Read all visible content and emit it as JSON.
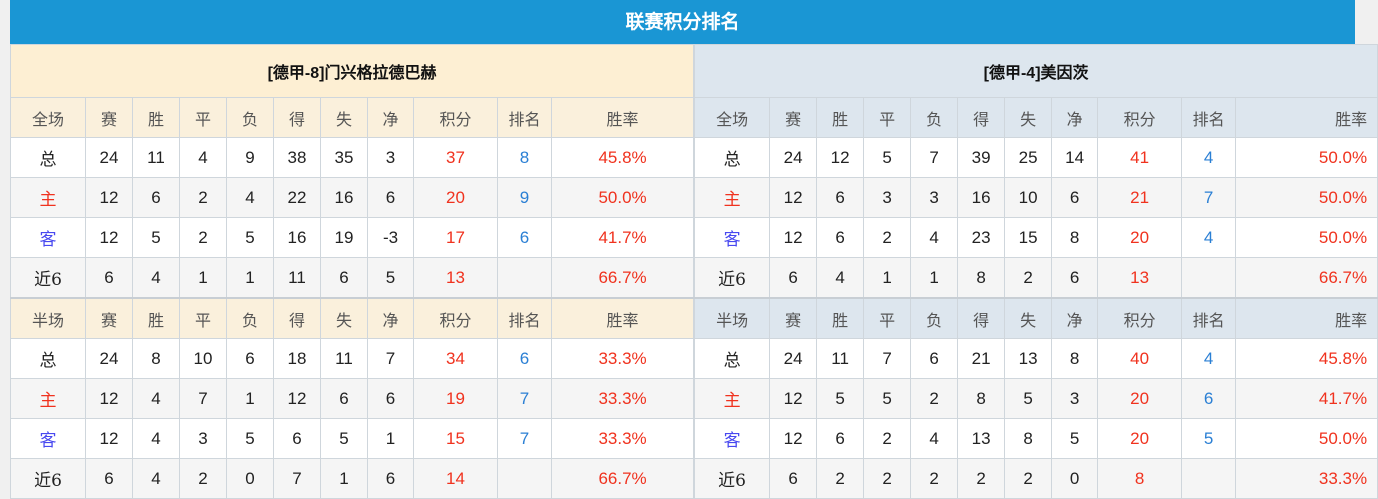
{
  "title": "联赛积分排名",
  "columns_full": [
    "全场",
    "赛",
    "胜",
    "平",
    "负",
    "得",
    "失",
    "净",
    "积分",
    "排名",
    "胜率"
  ],
  "columns_half": [
    "半场",
    "赛",
    "胜",
    "平",
    "负",
    "得",
    "失",
    "净",
    "积分",
    "排名",
    "胜率"
  ],
  "colors": {
    "title_bg": "#1a96d4",
    "points": "#f0321e",
    "rank": "#2a7fd4",
    "home": "#f0321e",
    "away": "#4848f0"
  },
  "teams": [
    {
      "name": "[德甲-8]门兴格拉德巴赫",
      "full": [
        [
          "总",
          "24",
          "11",
          "4",
          "9",
          "38",
          "35",
          "3",
          "37",
          "8",
          "45.8%"
        ],
        [
          "主",
          "12",
          "6",
          "2",
          "4",
          "22",
          "16",
          "6",
          "20",
          "9",
          "50.0%"
        ],
        [
          "客",
          "12",
          "5",
          "2",
          "5",
          "16",
          "19",
          "-3",
          "17",
          "6",
          "41.7%"
        ],
        [
          "近6",
          "6",
          "4",
          "1",
          "1",
          "11",
          "6",
          "5",
          "13",
          "",
          "66.7%"
        ]
      ],
      "half": [
        [
          "总",
          "24",
          "8",
          "10",
          "6",
          "18",
          "11",
          "7",
          "34",
          "6",
          "33.3%"
        ],
        [
          "主",
          "12",
          "4",
          "7",
          "1",
          "12",
          "6",
          "6",
          "19",
          "7",
          "33.3%"
        ],
        [
          "客",
          "12",
          "4",
          "3",
          "5",
          "6",
          "5",
          "1",
          "15",
          "7",
          "33.3%"
        ],
        [
          "近6",
          "6",
          "4",
          "2",
          "0",
          "7",
          "1",
          "6",
          "14",
          "",
          "66.7%"
        ]
      ]
    },
    {
      "name": "[德甲-4]美因茨",
      "full": [
        [
          "总",
          "24",
          "12",
          "5",
          "7",
          "39",
          "25",
          "14",
          "41",
          "4",
          "50.0%"
        ],
        [
          "主",
          "12",
          "6",
          "3",
          "3",
          "16",
          "10",
          "6",
          "21",
          "7",
          "50.0%"
        ],
        [
          "客",
          "12",
          "6",
          "2",
          "4",
          "23",
          "15",
          "8",
          "20",
          "4",
          "50.0%"
        ],
        [
          "近6",
          "6",
          "4",
          "1",
          "1",
          "8",
          "2",
          "6",
          "13",
          "",
          "66.7%"
        ]
      ],
      "half": [
        [
          "总",
          "24",
          "11",
          "7",
          "6",
          "21",
          "13",
          "8",
          "40",
          "4",
          "45.8%"
        ],
        [
          "主",
          "12",
          "5",
          "5",
          "2",
          "8",
          "5",
          "3",
          "20",
          "6",
          "41.7%"
        ],
        [
          "客",
          "12",
          "6",
          "2",
          "4",
          "13",
          "8",
          "5",
          "20",
          "5",
          "50.0%"
        ],
        [
          "近6",
          "6",
          "2",
          "2",
          "2",
          "2",
          "2",
          "0",
          "8",
          "",
          "33.3%"
        ]
      ]
    }
  ]
}
